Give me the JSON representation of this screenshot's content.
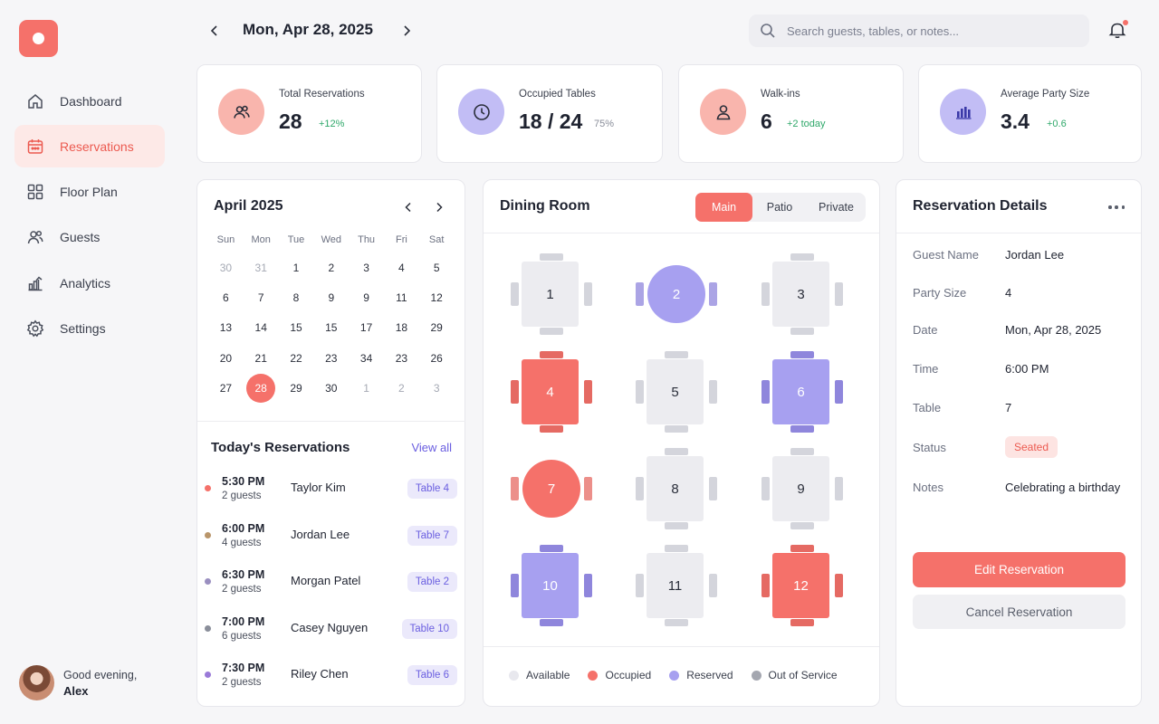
{
  "sidebar": {
    "items": [
      {
        "label": "Dashboard",
        "icon": "home-icon"
      },
      {
        "label": "Reservations",
        "icon": "calendar-icon"
      },
      {
        "label": "Floor Plan",
        "icon": "grid-icon"
      },
      {
        "label": "Guests",
        "icon": "users-icon"
      },
      {
        "label": "Analytics",
        "icon": "chart-icon"
      },
      {
        "label": "Settings",
        "icon": "gear-icon"
      }
    ],
    "active": "Reservations",
    "user": {
      "greeting": "Good evening,",
      "name": "Alex"
    }
  },
  "header": {
    "date": "Mon, Apr 28, 2025",
    "search_placeholder": "Search guests, tables, or notes..."
  },
  "stats": [
    {
      "label": "Total Reservations",
      "value": "28",
      "delta": "+12%",
      "icon": "users-icon",
      "color": "#f9b5ad"
    },
    {
      "label": "Occupied Tables",
      "value": "18 / 24",
      "delta": "75%",
      "icon": "clock-icon",
      "color": "#c2bdf5"
    },
    {
      "label": "Walk-ins",
      "value": "6",
      "delta": "+2 today",
      "icon": "person-icon",
      "color": "#f9b5ad"
    },
    {
      "label": "Average Party Size",
      "value": "3.4",
      "delta": "+0.6",
      "icon": "bar-chart-icon",
      "color": "#c2bdf5"
    }
  ],
  "calendar": {
    "title": "April 2025",
    "weekdays": [
      "Sun",
      "Mon",
      "Tue",
      "Wed",
      "Thu",
      "Fri",
      "Sat"
    ],
    "weeks": [
      [
        "30",
        "31",
        "1",
        "2",
        "3",
        "4",
        "5"
      ],
      [
        "6",
        "7",
        "8",
        "9",
        "9",
        "11",
        "12"
      ],
      [
        "13",
        "14",
        "15",
        "15",
        "17",
        "18",
        "29"
      ],
      [
        "20",
        "21",
        "22",
        "23",
        "34",
        "23",
        "26"
      ],
      [
        "27",
        "28",
        "29",
        "30",
        "1",
        "2",
        "3"
      ]
    ],
    "muted": [
      [
        0,
        0
      ],
      [
        0,
        1
      ],
      [
        4,
        4
      ],
      [
        4,
        5
      ],
      [
        4,
        6
      ]
    ],
    "selected": [
      4,
      1
    ]
  },
  "reservations": {
    "title": "Today's Reservations",
    "view_all": "View all",
    "items": [
      {
        "time": "5:30 PM",
        "guests": "2 guests",
        "name": "Taylor Kim",
        "table": "Table 4",
        "dot": "#f5716a"
      },
      {
        "time": "6:00 PM",
        "guests": "4 guests",
        "name": "Jordan Lee",
        "table": "Table 7",
        "dot": "#b9956a"
      },
      {
        "time": "6:30 PM",
        "guests": "2 guests",
        "name": "Morgan Patel",
        "table": "Table 2",
        "dot": "#9a8fc0"
      },
      {
        "time": "7:00 PM",
        "guests": "6 guests",
        "name": "Casey Nguyen",
        "table": "Table 10",
        "dot": "#8a8e9a"
      },
      {
        "time": "7:30 PM",
        "guests": "2 guests",
        "name": "Riley Chen",
        "table": "Table 6",
        "dot": "#9a7ad8"
      }
    ]
  },
  "dining": {
    "title": "Dining Room",
    "tabs": [
      "Main",
      "Patio",
      "Private"
    ],
    "active_tab": "Main",
    "tables": [
      {
        "num": "1",
        "status": "available",
        "shape": "square"
      },
      {
        "num": "2",
        "status": "reserved",
        "shape": "round"
      },
      {
        "num": "3",
        "status": "available",
        "shape": "square"
      },
      {
        "num": "4",
        "status": "occupied",
        "shape": "square"
      },
      {
        "num": "5",
        "status": "available",
        "shape": "square"
      },
      {
        "num": "6",
        "status": "reserved",
        "shape": "square"
      },
      {
        "num": "7",
        "status": "occupied",
        "shape": "round"
      },
      {
        "num": "8",
        "status": "available",
        "shape": "square"
      },
      {
        "num": "9",
        "status": "available",
        "shape": "square"
      },
      {
        "num": "10",
        "status": "reserved",
        "shape": "square"
      },
      {
        "num": "11",
        "status": "available",
        "shape": "square"
      },
      {
        "num": "12",
        "status": "occupied",
        "shape": "square"
      }
    ],
    "legend": [
      {
        "label": "Available",
        "color": "#e8e8ee"
      },
      {
        "label": "Occupied",
        "color": "#f5716a"
      },
      {
        "label": "Reserved",
        "color": "#a7a0f0"
      },
      {
        "label": "Out of Service",
        "color": "#a4a7b0"
      }
    ]
  },
  "details": {
    "title": "Reservation Details",
    "rows": [
      {
        "key": "Guest Name",
        "value": "Jordan Lee"
      },
      {
        "key": "Party Size",
        "value": "4"
      },
      {
        "key": "Date",
        "value": "Mon, Apr 28, 2025"
      },
      {
        "key": "Time",
        "value": "6:00 PM"
      },
      {
        "key": "Table",
        "value": "7"
      },
      {
        "key": "Status",
        "value": "Seated"
      },
      {
        "key": "Notes",
        "value": "Celebrating a birthday"
      }
    ],
    "edit_label": "Edit Reservation",
    "cancel_label": "Cancel Reservation"
  },
  "colors": {
    "accent": "#f5716a",
    "reserved": "#a7a0f0",
    "available": "#ececf0"
  }
}
